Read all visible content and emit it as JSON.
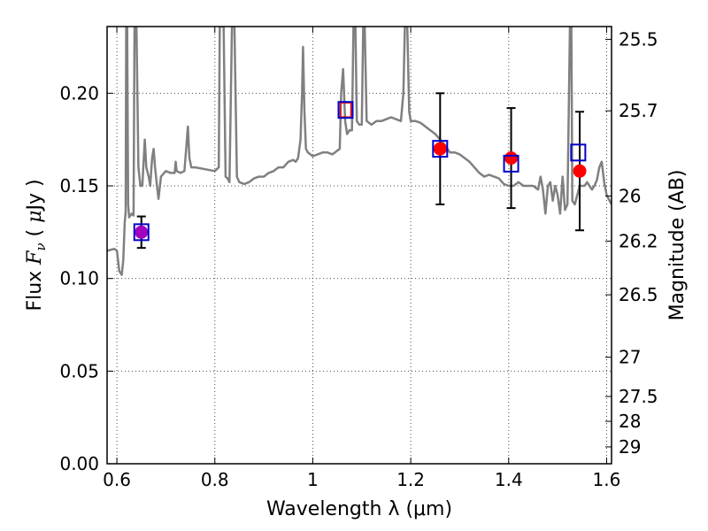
{
  "chart_data": {
    "type": "scatter",
    "xlabel": "Wavelength  λ (μm)",
    "ylabel": "Flux  F_ν  ( μJy )",
    "ylabel_parts": {
      "prefix": "Flux ",
      "var": "F",
      "sub": "ν",
      "mid": "  ( ",
      "mu": "μ",
      "suffix": "Jy )"
    },
    "y2label": "Magnitude (AB)",
    "xlim": [
      0.58,
      1.61
    ],
    "ylim": [
      0.0,
      0.236
    ],
    "grid": true,
    "x_ticks": [
      {
        "value": 0.6,
        "label": "0.6"
      },
      {
        "value": 0.8,
        "label": "0.8"
      },
      {
        "value": 1.0,
        "label": "1"
      },
      {
        "value": 1.2,
        "label": "1.2"
      },
      {
        "value": 1.4,
        "label": "1.4"
      },
      {
        "value": 1.6,
        "label": "1.6"
      }
    ],
    "y_ticks": [
      {
        "value": 0.0,
        "label": "0.00"
      },
      {
        "value": 0.05,
        "label": "0.05"
      },
      {
        "value": 0.1,
        "label": "0.10"
      },
      {
        "value": 0.15,
        "label": "0.15"
      },
      {
        "value": 0.2,
        "label": "0.20"
      }
    ],
    "y2_ticks": [
      {
        "label": "25.5",
        "flux": 0.2291
      },
      {
        "label": "25.7",
        "flux": 0.1905
      },
      {
        "label": "26",
        "flux": 0.1445
      },
      {
        "label": "26.2",
        "flux": 0.1202
      },
      {
        "label": "26.5",
        "flux": 0.0912
      },
      {
        "label": "27",
        "flux": 0.0575
      },
      {
        "label": "27.5",
        "flux": 0.0363
      },
      {
        "label": "28",
        "flux": 0.0229
      },
      {
        "label": "29",
        "flux": 0.0091
      }
    ],
    "colors": {
      "model_line": "#808080",
      "observed_points": "#ff0000",
      "model_squares": "#0000cc",
      "purple_point": "#a000c0"
    },
    "model_spectrum": [
      [
        0.58,
        0.115
      ],
      [
        0.595,
        0.116
      ],
      [
        0.6,
        0.115
      ],
      [
        0.605,
        0.104
      ],
      [
        0.61,
        0.102
      ],
      [
        0.613,
        0.11
      ],
      [
        0.616,
        0.13
      ],
      [
        0.618,
        0.136
      ],
      [
        0.619,
        0.236
      ],
      [
        0.621,
        0.236
      ],
      [
        0.623,
        0.14
      ],
      [
        0.625,
        0.133
      ],
      [
        0.63,
        0.135
      ],
      [
        0.634,
        0.134
      ],
      [
        0.636,
        0.236
      ],
      [
        0.64,
        0.236
      ],
      [
        0.644,
        0.16
      ],
      [
        0.648,
        0.15
      ],
      [
        0.652,
        0.15
      ],
      [
        0.655,
        0.165
      ],
      [
        0.657,
        0.175
      ],
      [
        0.66,
        0.16
      ],
      [
        0.665,
        0.155
      ],
      [
        0.668,
        0.15
      ],
      [
        0.672,
        0.165
      ],
      [
        0.675,
        0.17
      ],
      [
        0.678,
        0.16
      ],
      [
        0.682,
        0.15
      ],
      [
        0.685,
        0.143
      ],
      [
        0.69,
        0.155
      ],
      [
        0.7,
        0.158
      ],
      [
        0.71,
        0.157
      ],
      [
        0.718,
        0.157
      ],
      [
        0.72,
        0.163
      ],
      [
        0.722,
        0.158
      ],
      [
        0.73,
        0.157
      ],
      [
        0.738,
        0.158
      ],
      [
        0.742,
        0.172
      ],
      [
        0.745,
        0.182
      ],
      [
        0.748,
        0.165
      ],
      [
        0.752,
        0.16
      ],
      [
        0.76,
        0.16
      ],
      [
        0.78,
        0.159
      ],
      [
        0.8,
        0.158
      ],
      [
        0.808,
        0.16
      ],
      [
        0.81,
        0.236
      ],
      [
        0.818,
        0.236
      ],
      [
        0.822,
        0.155
      ],
      [
        0.826,
        0.154
      ],
      [
        0.83,
        0.152
      ],
      [
        0.835,
        0.236
      ],
      [
        0.84,
        0.236
      ],
      [
        0.845,
        0.155
      ],
      [
        0.85,
        0.152
      ],
      [
        0.86,
        0.151
      ],
      [
        0.87,
        0.152
      ],
      [
        0.88,
        0.154
      ],
      [
        0.89,
        0.155
      ],
      [
        0.9,
        0.155
      ],
      [
        0.91,
        0.157
      ],
      [
        0.92,
        0.158
      ],
      [
        0.93,
        0.16
      ],
      [
        0.94,
        0.16
      ],
      [
        0.95,
        0.163
      ],
      [
        0.96,
        0.164
      ],
      [
        0.965,
        0.163
      ],
      [
        0.97,
        0.165
      ],
      [
        0.975,
        0.175
      ],
      [
        0.978,
        0.2
      ],
      [
        0.98,
        0.225
      ],
      [
        0.983,
        0.19
      ],
      [
        0.986,
        0.17
      ],
      [
        0.99,
        0.168
      ],
      [
        1.0,
        0.166
      ],
      [
        1.01,
        0.167
      ],
      [
        1.02,
        0.168
      ],
      [
        1.03,
        0.168
      ],
      [
        1.04,
        0.167
      ],
      [
        1.05,
        0.169
      ],
      [
        1.055,
        0.17
      ],
      [
        1.058,
        0.2
      ],
      [
        1.062,
        0.213
      ],
      [
        1.066,
        0.185
      ],
      [
        1.07,
        0.178
      ],
      [
        1.075,
        0.18
      ],
      [
        1.08,
        0.18
      ],
      [
        1.083,
        0.236
      ],
      [
        1.087,
        0.236
      ],
      [
        1.09,
        0.185
      ],
      [
        1.095,
        0.183
      ],
      [
        1.1,
        0.183
      ],
      [
        1.103,
        0.236
      ],
      [
        1.106,
        0.236
      ],
      [
        1.11,
        0.185
      ],
      [
        1.12,
        0.183
      ],
      [
        1.13,
        0.185
      ],
      [
        1.14,
        0.185
      ],
      [
        1.15,
        0.186
      ],
      [
        1.16,
        0.187
      ],
      [
        1.17,
        0.186
      ],
      [
        1.18,
        0.185
      ],
      [
        1.185,
        0.2
      ],
      [
        1.188,
        0.236
      ],
      [
        1.193,
        0.236
      ],
      [
        1.197,
        0.19
      ],
      [
        1.2,
        0.185
      ],
      [
        1.21,
        0.185
      ],
      [
        1.22,
        0.184
      ],
      [
        1.23,
        0.182
      ],
      [
        1.24,
        0.18
      ],
      [
        1.25,
        0.178
      ],
      [
        1.26,
        0.175
      ],
      [
        1.27,
        0.172
      ],
      [
        1.28,
        0.168
      ],
      [
        1.29,
        0.168
      ],
      [
        1.3,
        0.167
      ],
      [
        1.31,
        0.165
      ],
      [
        1.32,
        0.163
      ],
      [
        1.33,
        0.16
      ],
      [
        1.34,
        0.157
      ],
      [
        1.35,
        0.155
      ],
      [
        1.36,
        0.156
      ],
      [
        1.37,
        0.155
      ],
      [
        1.38,
        0.154
      ],
      [
        1.39,
        0.151
      ],
      [
        1.4,
        0.15
      ],
      [
        1.41,
        0.15
      ],
      [
        1.42,
        0.152
      ],
      [
        1.43,
        0.15
      ],
      [
        1.44,
        0.15
      ],
      [
        1.45,
        0.15
      ],
      [
        1.46,
        0.148
      ],
      [
        1.465,
        0.155
      ],
      [
        1.47,
        0.148
      ],
      [
        1.475,
        0.135
      ],
      [
        1.48,
        0.15
      ],
      [
        1.485,
        0.152
      ],
      [
        1.49,
        0.142
      ],
      [
        1.495,
        0.15
      ],
      [
        1.5,
        0.145
      ],
      [
        1.505,
        0.135
      ],
      [
        1.51,
        0.155
      ],
      [
        1.515,
        0.137
      ],
      [
        1.52,
        0.14
      ],
      [
        1.525,
        0.236
      ],
      [
        1.528,
        0.236
      ],
      [
        1.53,
        0.142
      ],
      [
        1.535,
        0.14
      ],
      [
        1.54,
        0.145
      ],
      [
        1.545,
        0.15
      ],
      [
        1.55,
        0.15
      ],
      [
        1.555,
        0.15
      ],
      [
        1.56,
        0.152
      ],
      [
        1.565,
        0.15
      ],
      [
        1.57,
        0.148
      ],
      [
        1.575,
        0.15
      ],
      [
        1.58,
        0.153
      ],
      [
        1.585,
        0.16
      ],
      [
        1.59,
        0.163
      ],
      [
        1.595,
        0.152
      ],
      [
        1.6,
        0.145
      ],
      [
        1.61,
        0.14
      ]
    ],
    "observed_points": [
      {
        "x": 0.65,
        "y": 0.125,
        "yerr": 0.0085,
        "color": "purple"
      },
      {
        "x": 1.26,
        "y": 0.17,
        "yerr": 0.03,
        "color": "red"
      },
      {
        "x": 1.405,
        "y": 0.165,
        "yerr": 0.027,
        "color": "red"
      },
      {
        "x": 1.545,
        "y": 0.158,
        "yerr": 0.032,
        "color": "red"
      }
    ],
    "model_points": [
      {
        "x": 0.65,
        "y": 0.125
      },
      {
        "x": 1.067,
        "y": 0.191
      },
      {
        "x": 1.26,
        "y": 0.17
      },
      {
        "x": 1.405,
        "y": 0.162
      },
      {
        "x": 1.542,
        "y": 0.168
      }
    ],
    "extra_markers": [
      {
        "x": 1.067,
        "y": 0.191,
        "shape": "square",
        "color": "red"
      }
    ]
  }
}
